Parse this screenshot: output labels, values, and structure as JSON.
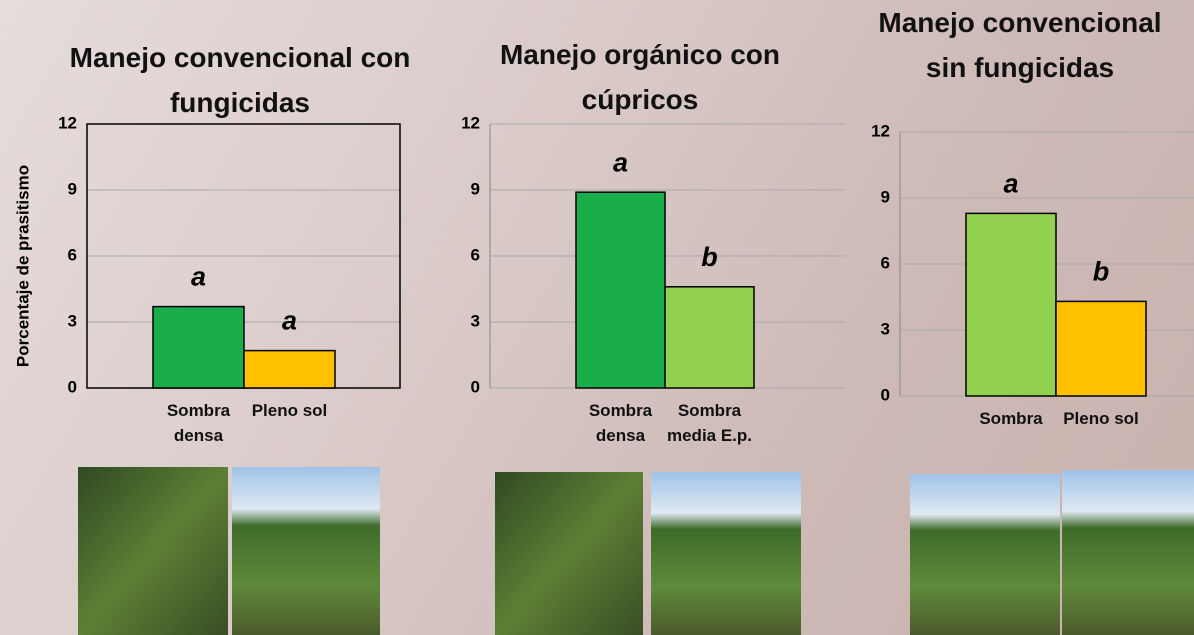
{
  "chart_data": [
    {
      "type": "bar",
      "title": "Manejo convencional con fungicidas",
      "y_label": "Porcentaje de prasitismo",
      "categories": [
        "Sombra densa",
        "Pleno sol"
      ],
      "values": [
        3.7,
        1.7
      ],
      "colors": [
        "#1aae4a",
        "#ffc000"
      ],
      "annotations": [
        "a",
        "a"
      ],
      "ylim": [
        0,
        12
      ],
      "yticks": [
        0,
        3,
        6,
        9,
        12
      ],
      "grid": true
    },
    {
      "type": "bar",
      "title": "Manejo orgánico con cúpricos",
      "categories": [
        "Sombra densa",
        "Sombra media E.p."
      ],
      "values": [
        8.9,
        4.6
      ],
      "colors": [
        "#1aae4a",
        "#92d050"
      ],
      "annotations": [
        "a",
        "b"
      ],
      "ylim": [
        0,
        12
      ],
      "yticks": [
        0,
        3,
        6,
        9,
        12
      ],
      "grid": true
    },
    {
      "type": "bar",
      "title": "Manejo convencional sin fungicidas",
      "categories": [
        "Sombra",
        "Pleno sol"
      ],
      "values": [
        8.3,
        4.3
      ],
      "colors": [
        "#92d050",
        "#ffc000"
      ],
      "annotations": [
        "a",
        "b"
      ],
      "ylim": [
        0,
        12
      ],
      "yticks": [
        0,
        3,
        6,
        9,
        12
      ],
      "grid": true
    }
  ]
}
